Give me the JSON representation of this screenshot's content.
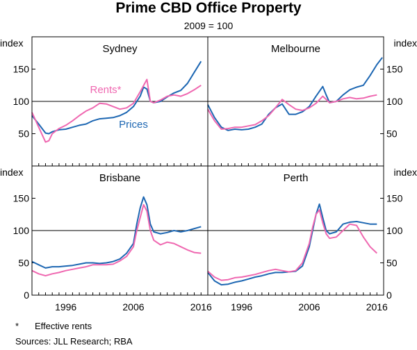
{
  "title": "Prime CBD Office Property",
  "subtitle": "2009 = 100",
  "y_axis_label": "index",
  "footnotes": {
    "mark": "*",
    "note": "Effective rents",
    "sources": "Sources:  JLL Research; RBA"
  },
  "colors": {
    "prices": "#1c66b2",
    "rents": "#ef67b0"
  },
  "chart_data": [
    {
      "type": "line",
      "panel": "Sydney",
      "xlim": [
        1991,
        2017
      ],
      "ylim": [
        0,
        200
      ],
      "yticks": [
        50,
        100,
        150
      ],
      "xticks": [
        1996,
        2006,
        2016
      ],
      "reference_line": 100,
      "series_labels": {
        "rents": "Rents*",
        "prices": "Prices"
      },
      "series": [
        {
          "name": "Prices",
          "color": "#1c66b2",
          "points": [
            [
              1991.0,
              78
            ],
            [
              1992.0,
              65
            ],
            [
              1993.0,
              51
            ],
            [
              1993.5,
              50
            ],
            [
              1994.0,
              53
            ],
            [
              1995.0,
              56
            ],
            [
              1996.0,
              57
            ],
            [
              1997.0,
              60
            ],
            [
              1998.0,
              63
            ],
            [
              1999.0,
              65
            ],
            [
              2000.0,
              70
            ],
            [
              2001.0,
              73
            ],
            [
              2002.0,
              74
            ],
            [
              2003.0,
              75
            ],
            [
              2004.0,
              78
            ],
            [
              2005.0,
              83
            ],
            [
              2006.0,
              92
            ],
            [
              2007.0,
              108
            ],
            [
              2007.5,
              122
            ],
            [
              2008.0,
              119
            ],
            [
              2008.5,
              100
            ],
            [
              2009.0,
              98
            ],
            [
              2010.0,
              100
            ],
            [
              2011.0,
              107
            ],
            [
              2012.0,
              113
            ],
            [
              2013.0,
              117
            ],
            [
              2014.0,
              128
            ],
            [
              2015.0,
              145
            ],
            [
              2016.0,
              162
            ]
          ]
        },
        {
          "name": "Rents*",
          "color": "#ef67b0",
          "points": [
            [
              1991.0,
              83
            ],
            [
              1992.0,
              60
            ],
            [
              1993.0,
              37
            ],
            [
              1993.5,
              39
            ],
            [
              1994.0,
              50
            ],
            [
              1995.0,
              58
            ],
            [
              1996.0,
              63
            ],
            [
              1997.0,
              70
            ],
            [
              1998.0,
              78
            ],
            [
              1999.0,
              85
            ],
            [
              2000.0,
              90
            ],
            [
              2001.0,
              97
            ],
            [
              2002.0,
              96
            ],
            [
              2003.0,
              92
            ],
            [
              2004.0,
              88
            ],
            [
              2005.0,
              90
            ],
            [
              2006.0,
              97
            ],
            [
              2007.0,
              115
            ],
            [
              2008.0,
              134
            ],
            [
              2008.5,
              100
            ],
            [
              2009.0,
              98
            ],
            [
              2010.0,
              102
            ],
            [
              2011.0,
              108
            ],
            [
              2012.0,
              110
            ],
            [
              2013.0,
              108
            ],
            [
              2014.0,
              112
            ],
            [
              2015.0,
              118
            ],
            [
              2016.0,
              125
            ]
          ]
        }
      ]
    },
    {
      "type": "line",
      "panel": "Melbourne",
      "xlim": [
        1991,
        2017
      ],
      "ylim": [
        0,
        200
      ],
      "yticks": [
        50,
        100,
        150
      ],
      "xticks": [
        1996,
        2006,
        2016
      ],
      "reference_line": 100,
      "series": [
        {
          "name": "Prices",
          "color": "#1c66b2",
          "points": [
            [
              1991.0,
              95
            ],
            [
              1992.0,
              75
            ],
            [
              1993.0,
              60
            ],
            [
              1994.0,
              55
            ],
            [
              1995.0,
              57
            ],
            [
              1996.0,
              56
            ],
            [
              1997.0,
              57
            ],
            [
              1998.0,
              60
            ],
            [
              1999.0,
              65
            ],
            [
              2000.0,
              80
            ],
            [
              2001.0,
              90
            ],
            [
              2002.0,
              96
            ],
            [
              2003.0,
              80
            ],
            [
              2004.0,
              80
            ],
            [
              2005.0,
              84
            ],
            [
              2006.0,
              92
            ],
            [
              2007.0,
              108
            ],
            [
              2008.0,
              123
            ],
            [
              2008.5,
              110
            ],
            [
              2009.0,
              98
            ],
            [
              2010.0,
              100
            ],
            [
              2011.0,
              110
            ],
            [
              2012.0,
              118
            ],
            [
              2013.0,
              122
            ],
            [
              2014.0,
              125
            ],
            [
              2015.0,
              140
            ],
            [
              2016.0,
              157
            ],
            [
              2016.8,
              168
            ]
          ]
        },
        {
          "name": "Rents*",
          "color": "#ef67b0",
          "points": [
            [
              1991.0,
              88
            ],
            [
              1992.0,
              70
            ],
            [
              1993.0,
              57
            ],
            [
              1994.0,
              58
            ],
            [
              1995.0,
              60
            ],
            [
              1996.0,
              60
            ],
            [
              1997.0,
              62
            ],
            [
              1998.0,
              64
            ],
            [
              1999.0,
              70
            ],
            [
              2000.0,
              78
            ],
            [
              2001.0,
              90
            ],
            [
              2002.0,
              103
            ],
            [
              2003.0,
              95
            ],
            [
              2004.0,
              88
            ],
            [
              2005.0,
              86
            ],
            [
              2006.0,
              90
            ],
            [
              2007.0,
              97
            ],
            [
              2008.0,
              108
            ],
            [
              2008.5,
              103
            ],
            [
              2009.0,
              98
            ],
            [
              2010.0,
              100
            ],
            [
              2011.0,
              104
            ],
            [
              2012.0,
              106
            ],
            [
              2013.0,
              104
            ],
            [
              2014.0,
              105
            ],
            [
              2015.0,
              108
            ],
            [
              2016.0,
              110
            ]
          ]
        }
      ]
    },
    {
      "type": "line",
      "panel": "Brisbane",
      "xlim": [
        1991,
        2017
      ],
      "ylim": [
        0,
        200
      ],
      "yticks": [
        0,
        50,
        100,
        150
      ],
      "xticks": [
        1996,
        2006,
        2016
      ],
      "reference_line": 100,
      "series": [
        {
          "name": "Prices",
          "color": "#1c66b2",
          "points": [
            [
              1991.0,
              52
            ],
            [
              1992.0,
              47
            ],
            [
              1993.0,
              42
            ],
            [
              1994.0,
              44
            ],
            [
              1995.0,
              44
            ],
            [
              1996.0,
              45
            ],
            [
              1997.0,
              46
            ],
            [
              1998.0,
              48
            ],
            [
              1999.0,
              50
            ],
            [
              2000.0,
              50
            ],
            [
              2001.0,
              49
            ],
            [
              2002.0,
              50
            ],
            [
              2003.0,
              52
            ],
            [
              2004.0,
              56
            ],
            [
              2005.0,
              65
            ],
            [
              2006.0,
              80
            ],
            [
              2006.5,
              110
            ],
            [
              2007.0,
              135
            ],
            [
              2007.5,
              152
            ],
            [
              2008.0,
              140
            ],
            [
              2008.5,
              110
            ],
            [
              2009.0,
              98
            ],
            [
              2010.0,
              95
            ],
            [
              2011.0,
              97
            ],
            [
              2012.0,
              100
            ],
            [
              2013.0,
              98
            ],
            [
              2014.0,
              100
            ],
            [
              2015.0,
              103
            ],
            [
              2016.0,
              106
            ]
          ]
        },
        {
          "name": "Rents*",
          "color": "#ef67b0",
          "points": [
            [
              1991.0,
              38
            ],
            [
              1992.0,
              33
            ],
            [
              1993.0,
              30
            ],
            [
              1994.0,
              33
            ],
            [
              1995.0,
              35
            ],
            [
              1996.0,
              38
            ],
            [
              1997.0,
              40
            ],
            [
              1998.0,
              42
            ],
            [
              1999.0,
              44
            ],
            [
              2000.0,
              47
            ],
            [
              2001.0,
              47
            ],
            [
              2002.0,
              47
            ],
            [
              2003.0,
              48
            ],
            [
              2004.0,
              53
            ],
            [
              2005.0,
              60
            ],
            [
              2006.0,
              75
            ],
            [
              2006.5,
              100
            ],
            [
              2007.0,
              120
            ],
            [
              2007.5,
              140
            ],
            [
              2008.0,
              130
            ],
            [
              2008.5,
              100
            ],
            [
              2009.0,
              85
            ],
            [
              2010.0,
              78
            ],
            [
              2011.0,
              82
            ],
            [
              2012.0,
              80
            ],
            [
              2013.0,
              75
            ],
            [
              2014.0,
              70
            ],
            [
              2015.0,
              66
            ],
            [
              2016.0,
              65
            ]
          ]
        }
      ]
    },
    {
      "type": "line",
      "panel": "Perth",
      "xlim": [
        1991,
        2017
      ],
      "ylim": [
        0,
        200
      ],
      "yticks": [
        0,
        50,
        100,
        150
      ],
      "xticks": [
        1996,
        2006,
        2016
      ],
      "reference_line": 100,
      "series": [
        {
          "name": "Prices",
          "color": "#1c66b2",
          "points": [
            [
              1991.0,
              35
            ],
            [
              1992.0,
              22
            ],
            [
              1993.0,
              16
            ],
            [
              1994.0,
              17
            ],
            [
              1995.0,
              20
            ],
            [
              1996.0,
              22
            ],
            [
              1997.0,
              25
            ],
            [
              1998.0,
              28
            ],
            [
              1999.0,
              30
            ],
            [
              2000.0,
              33
            ],
            [
              2001.0,
              35
            ],
            [
              2002.0,
              35
            ],
            [
              2003.0,
              36
            ],
            [
              2004.0,
              37
            ],
            [
              2005.0,
              45
            ],
            [
              2006.0,
              75
            ],
            [
              2006.5,
              100
            ],
            [
              2007.0,
              125
            ],
            [
              2007.5,
              141
            ],
            [
              2008.0,
              120
            ],
            [
              2008.5,
              100
            ],
            [
              2009.0,
              95
            ],
            [
              2010.0,
              98
            ],
            [
              2011.0,
              110
            ],
            [
              2012.0,
              113
            ],
            [
              2013.0,
              114
            ],
            [
              2014.0,
              112
            ],
            [
              2015.0,
              110
            ],
            [
              2016.0,
              110
            ]
          ]
        },
        {
          "name": "Rents*",
          "color": "#ef67b0",
          "points": [
            [
              1991.0,
              37
            ],
            [
              1992.0,
              28
            ],
            [
              1993.0,
              23
            ],
            [
              1994.0,
              24
            ],
            [
              1995.0,
              27
            ],
            [
              1996.0,
              28
            ],
            [
              1997.0,
              30
            ],
            [
              1998.0,
              32
            ],
            [
              1999.0,
              35
            ],
            [
              2000.0,
              38
            ],
            [
              2001.0,
              40
            ],
            [
              2002.0,
              38
            ],
            [
              2003.0,
              36
            ],
            [
              2004.0,
              38
            ],
            [
              2005.0,
              50
            ],
            [
              2006.0,
              80
            ],
            [
              2006.5,
              105
            ],
            [
              2007.0,
              125
            ],
            [
              2007.5,
              132
            ],
            [
              2008.0,
              112
            ],
            [
              2008.5,
              95
            ],
            [
              2009.0,
              88
            ],
            [
              2010.0,
              90
            ],
            [
              2011.0,
              100
            ],
            [
              2012.0,
              110
            ],
            [
              2013.0,
              108
            ],
            [
              2014.0,
              90
            ],
            [
              2015.0,
              75
            ],
            [
              2016.0,
              65
            ]
          ]
        }
      ]
    }
  ]
}
